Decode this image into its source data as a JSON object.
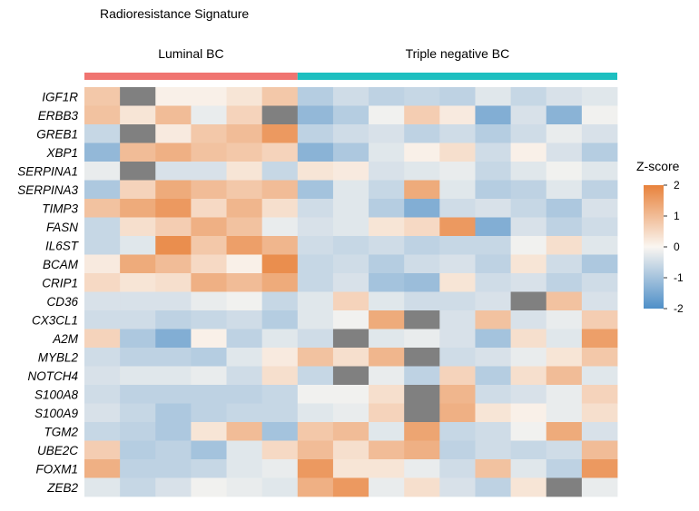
{
  "chart_data": {
    "type": "heatmap",
    "title": "Radioresistance Signature",
    "groups": [
      {
        "label": "Luminal BC",
        "columns": 6,
        "color": "#F07470"
      },
      {
        "label": "Triple negative BC",
        "columns": 9,
        "color": "#1DBFC0"
      }
    ],
    "rows": [
      "IGF1R",
      "ERBB3",
      "GREB1",
      "XBP1",
      "SERPINA1",
      "SERPINA3",
      "TIMP3",
      "FASN",
      "IL6ST",
      "BCAM",
      "CRIP1",
      "CD36",
      "CX3CL1",
      "A2M",
      "MYBL2",
      "NOTCH4",
      "S100A8",
      "S100A9",
      "TGM2",
      "UBE2C",
      "FOXM1",
      "ZEB2"
    ],
    "values": [
      [
        0.8,
        null,
        0.1,
        0.1,
        0.3,
        0.8,
        -0.8,
        -0.5,
        -0.7,
        -0.6,
        -0.7,
        -0.3,
        -0.6,
        -0.4,
        -0.3
      ],
      [
        0.9,
        0.3,
        1.0,
        -0.2,
        0.6,
        null,
        -1.2,
        -0.8,
        -0.1,
        0.7,
        0.2,
        -1.4,
        -0.4,
        -1.3,
        -0.1
      ],
      [
        -0.6,
        null,
        0.2,
        0.8,
        1.0,
        1.6,
        -0.7,
        -0.5,
        -0.4,
        -0.7,
        -0.5,
        -0.8,
        -0.5,
        -0.2,
        -0.4
      ],
      [
        -1.2,
        1.0,
        1.2,
        0.9,
        0.8,
        0.6,
        -1.3,
        -0.9,
        -0.3,
        0.1,
        0.4,
        -0.5,
        0.1,
        -0.4,
        -0.8
      ],
      [
        -0.2,
        null,
        -0.4,
        -0.4,
        0.3,
        -0.6,
        0.3,
        0.2,
        -0.4,
        -0.3,
        -0.2,
        -0.6,
        -0.3,
        -0.1,
        -0.3
      ],
      [
        -0.9,
        0.6,
        1.3,
        1.0,
        0.8,
        1.0,
        -1.0,
        -0.3,
        -0.6,
        1.3,
        -0.3,
        -0.8,
        -0.7,
        -0.3,
        -0.7
      ],
      [
        0.9,
        1.3,
        1.6,
        0.5,
        1.1,
        0.4,
        -0.5,
        -0.3,
        -0.8,
        -1.4,
        -0.5,
        -0.4,
        -0.6,
        -0.9,
        -0.4
      ],
      [
        -0.6,
        0.4,
        0.7,
        1.2,
        0.9,
        -0.2,
        -0.4,
        -0.3,
        0.3,
        0.5,
        1.6,
        -1.4,
        -0.4,
        -0.7,
        -0.5
      ],
      [
        -0.6,
        -0.3,
        1.8,
        0.8,
        1.5,
        1.1,
        -0.5,
        -0.6,
        -0.5,
        -0.7,
        -0.6,
        -0.6,
        -0.1,
        0.4,
        -0.3
      ],
      [
        0.2,
        1.3,
        1.0,
        0.5,
        0.1,
        1.8,
        -0.6,
        -0.5,
        -0.8,
        -0.5,
        -0.4,
        -0.7,
        0.3,
        -0.5,
        -0.9
      ],
      [
        0.5,
        0.3,
        0.4,
        1.2,
        1.0,
        1.3,
        -0.6,
        -0.4,
        -1.0,
        -1.1,
        0.3,
        -0.5,
        -0.4,
        -0.7,
        -0.5
      ],
      [
        -0.4,
        -0.4,
        -0.4,
        -0.2,
        -0.1,
        -0.6,
        -0.3,
        0.6,
        -0.3,
        -0.5,
        -0.5,
        -0.4,
        null,
        0.9,
        -0.4
      ],
      [
        -0.5,
        -0.5,
        -0.7,
        -0.6,
        -0.5,
        -0.8,
        -0.3,
        -0.1,
        1.3,
        null,
        -0.4,
        0.9,
        -0.4,
        -0.2,
        0.7
      ],
      [
        0.6,
        -0.9,
        -1.4,
        0.1,
        -0.7,
        -0.3,
        -0.5,
        null,
        -0.3,
        -0.2,
        -0.4,
        -1.0,
        0.4,
        -0.3,
        1.5
      ],
      [
        -0.5,
        -0.7,
        -0.7,
        -0.8,
        -0.3,
        0.2,
        0.9,
        0.4,
        1.1,
        null,
        -0.5,
        -0.4,
        -0.2,
        0.3,
        0.8
      ],
      [
        -0.4,
        -0.3,
        -0.3,
        -0.2,
        -0.5,
        0.4,
        -0.6,
        null,
        -0.2,
        -0.7,
        0.6,
        -0.8,
        0.4,
        1.0,
        -0.3
      ],
      [
        -0.5,
        -0.7,
        -0.7,
        -0.7,
        -0.7,
        -0.6,
        -0.1,
        -0.1,
        0.4,
        null,
        1.1,
        -0.5,
        -0.4,
        -0.2,
        0.6
      ],
      [
        -0.4,
        -0.6,
        -0.9,
        -0.7,
        -0.6,
        -0.6,
        -0.3,
        -0.2,
        0.6,
        null,
        1.2,
        0.3,
        0.1,
        -0.2,
        0.4
      ],
      [
        -0.6,
        -0.7,
        -0.9,
        0.3,
        1.0,
        -1.0,
        0.8,
        1.0,
        -0.3,
        1.4,
        -0.6,
        -0.5,
        -0.1,
        1.3,
        -0.4
      ],
      [
        0.7,
        -0.8,
        -0.7,
        -1.0,
        -0.3,
        0.5,
        1.0,
        0.4,
        1.0,
        1.2,
        -0.7,
        -0.5,
        -0.6,
        -0.5,
        1.0
      ],
      [
        1.2,
        -0.7,
        -0.7,
        -0.6,
        -0.3,
        -0.2,
        1.6,
        0.3,
        0.3,
        -0.2,
        -0.5,
        0.9,
        -0.3,
        -0.7,
        1.6
      ],
      [
        -0.3,
        -0.6,
        -0.4,
        -0.1,
        -0.2,
        -0.3,
        1.2,
        1.6,
        -0.2,
        0.4,
        -0.4,
        -0.7,
        0.3,
        null,
        -0.2
      ]
    ],
    "missing_color": "#808080",
    "colorbar": {
      "title": "Z-score",
      "ticks": [
        2,
        1,
        0,
        -1,
        -2
      ],
      "range": [
        -2,
        2
      ],
      "low_color": "#4E8FC8",
      "mid_color": "#FAF6F1",
      "high_color": "#E8823C"
    }
  }
}
